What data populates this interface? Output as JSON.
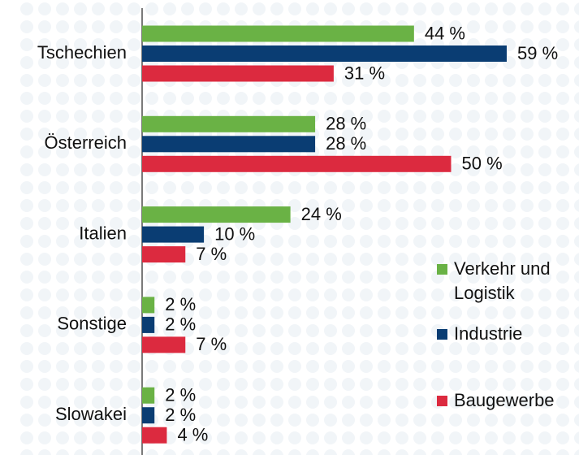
{
  "chart_data": {
    "type": "bar",
    "orientation": "horizontal",
    "categories": [
      "Tschechien",
      "Österreich",
      "Italien",
      "Sonstige",
      "Slowakei"
    ],
    "series": [
      {
        "name": "Verkehr und Logistik",
        "color": "#6ab245",
        "values": [
          44,
          28,
          24,
          2,
          2
        ],
        "value_labels": [
          "44 %",
          "28 %",
          "24 %",
          "2 %",
          "2 %"
        ]
      },
      {
        "name": "Industrie",
        "color": "#0a3d73",
        "values": [
          59,
          28,
          10,
          2,
          2
        ],
        "value_labels": [
          "59 %",
          "28 %",
          "10 %",
          "2 %",
          "2 %"
        ]
      },
      {
        "name": "Baugewerbe",
        "color": "#dc2a3f",
        "values": [
          31,
          50,
          7,
          7,
          4
        ],
        "value_labels": [
          "31 %",
          "50 %",
          "7 %",
          "7 %",
          "4 %"
        ]
      }
    ]
  }
}
